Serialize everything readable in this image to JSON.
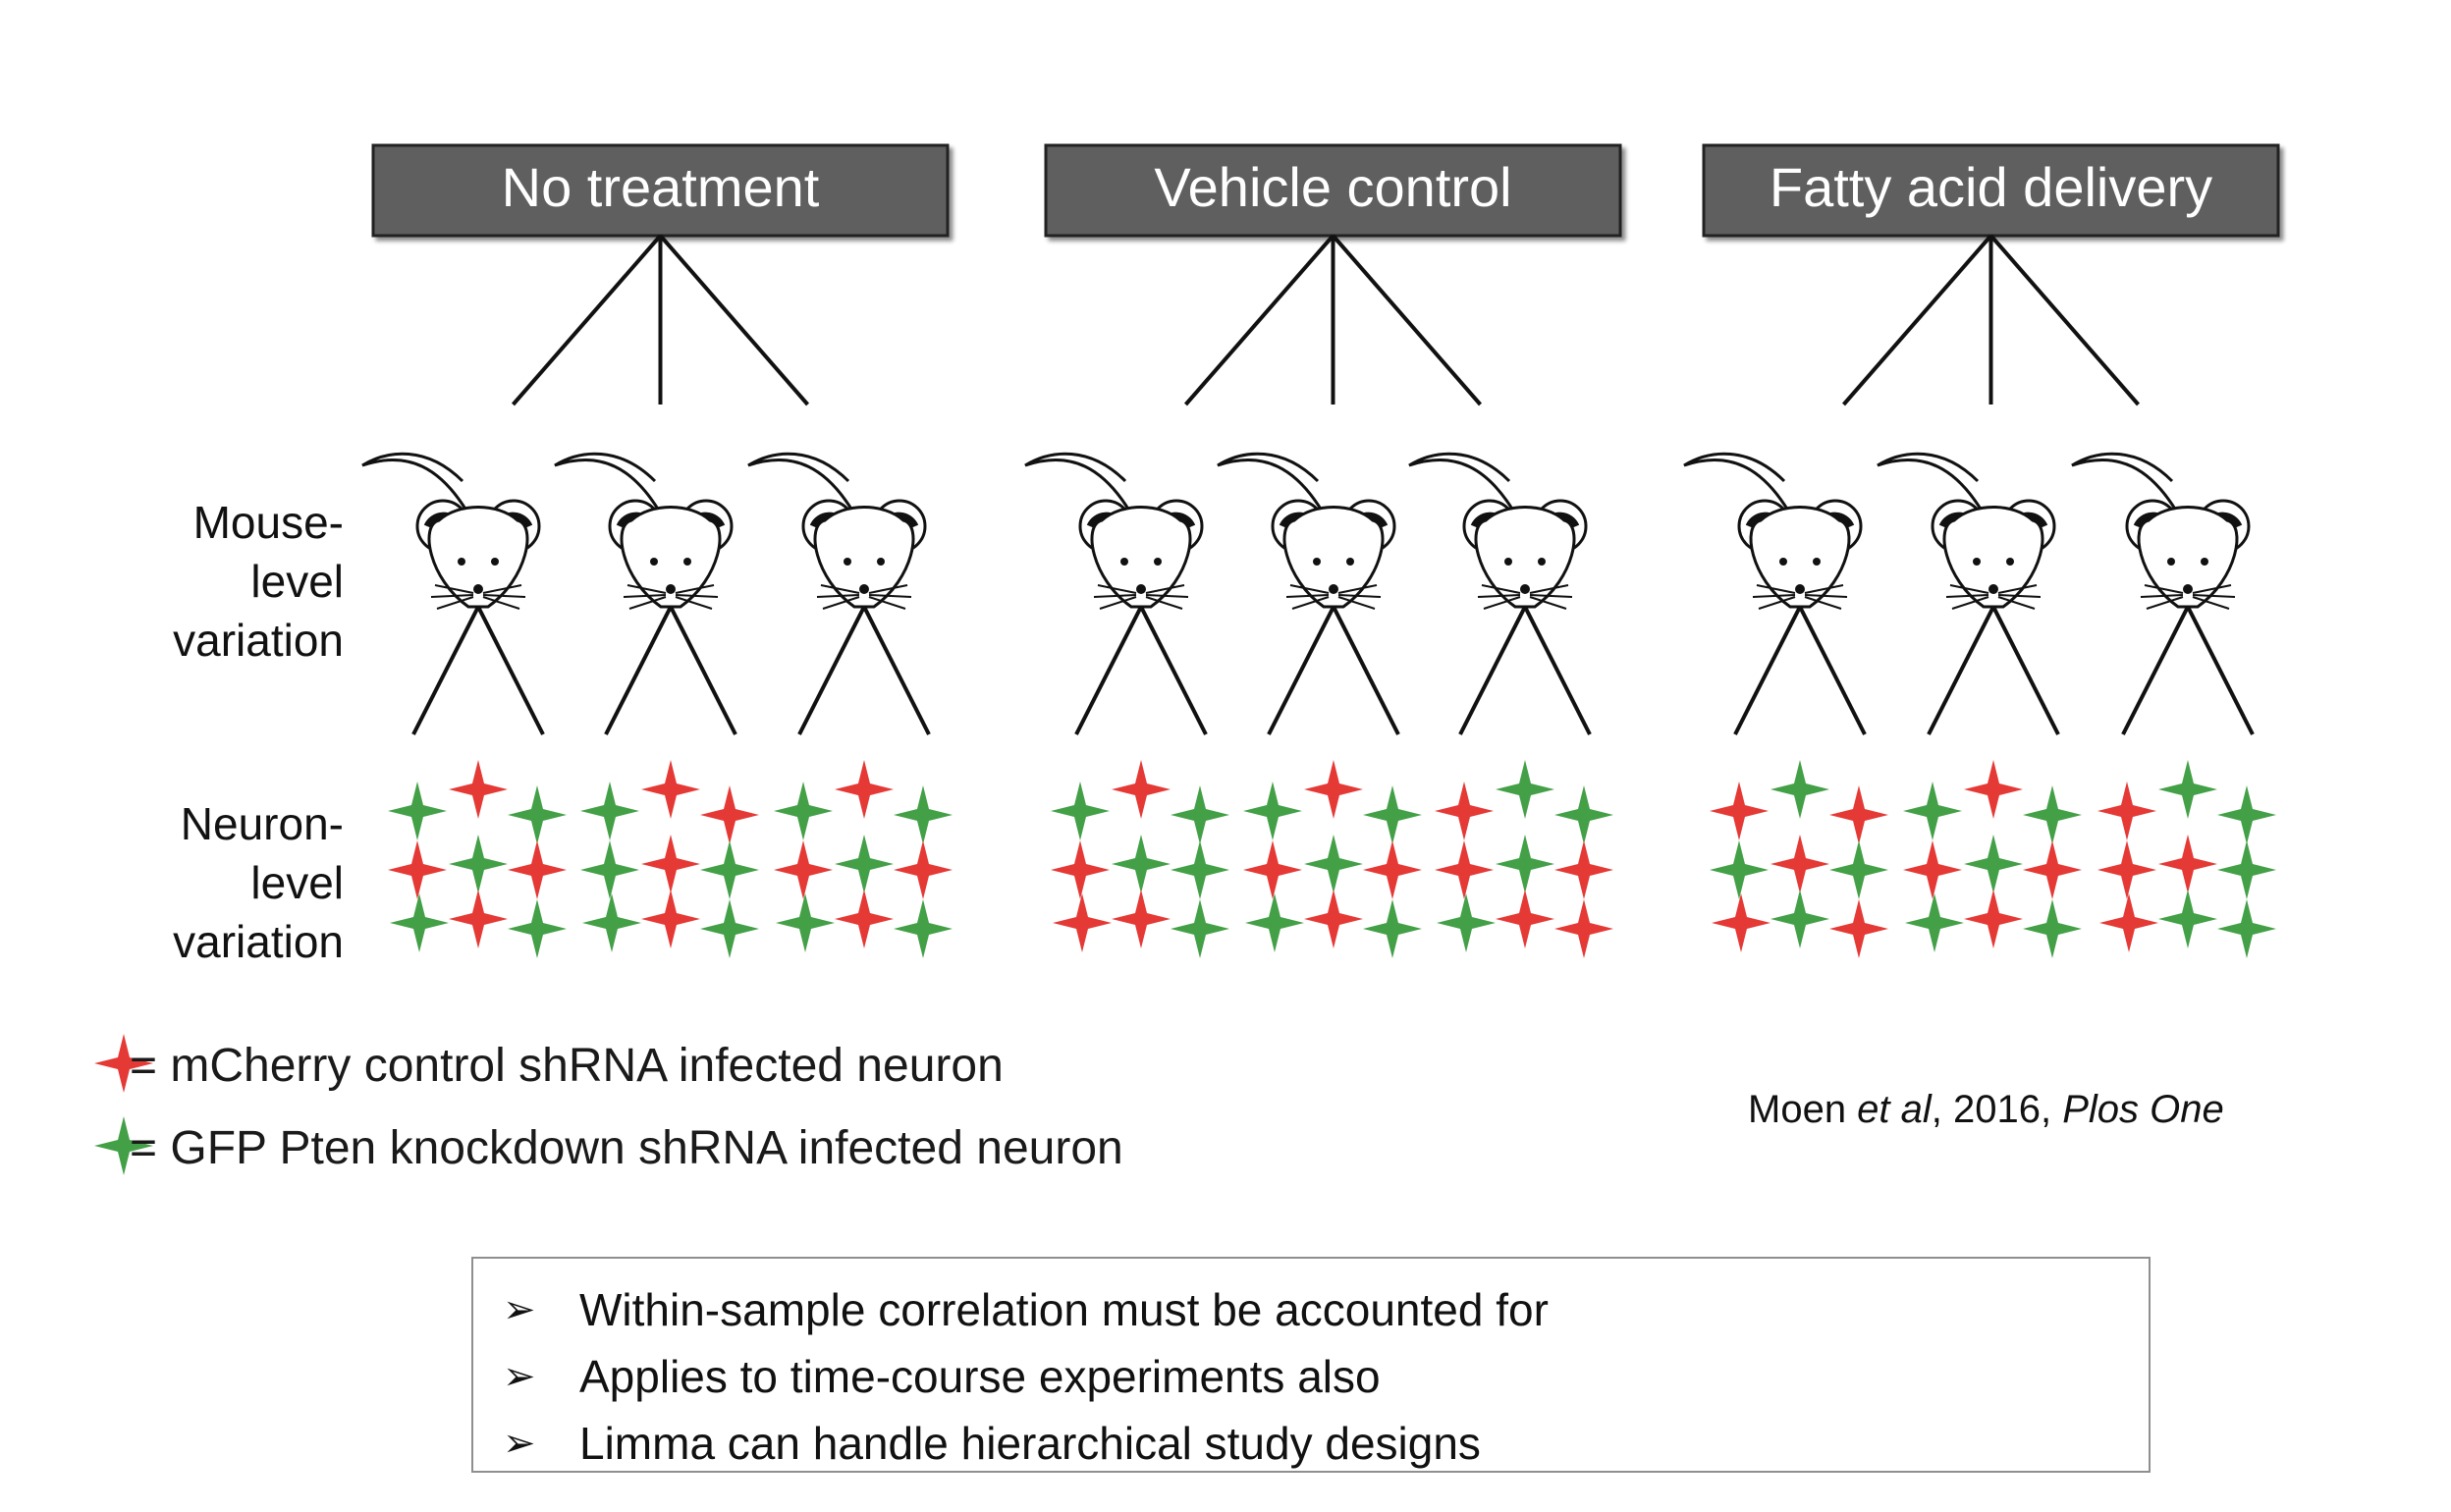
{
  "groups": [
    {
      "label": "No treatment"
    },
    {
      "label": "Vehicle control"
    },
    {
      "label": "Fatty acid delivery"
    }
  ],
  "row_labels": {
    "mouse": [
      "Mouse-",
      "level",
      "variation"
    ],
    "neuron": [
      "Neuron-",
      "level",
      "variation"
    ]
  },
  "legend": [
    {
      "color": "#e53935",
      "text": "= mCherry control shRNA infected neuron"
    },
    {
      "color": "#43a047",
      "text": "= GFP Pten knockdown shRNA infected neuron"
    }
  ],
  "colors": {
    "red": "#e53935",
    "green": "#43a047",
    "box": "#5f5f5f"
  },
  "citation": {
    "author": "Moen ",
    "etal": "et al",
    "year": ", 2016, ",
    "journal": "Plos One"
  },
  "bullets": [
    "Within-sample correlation must be accounted for",
    "Applies to time-course experiments also",
    "Limma can handle hierarchical study designs"
  ],
  "bullet_icon": "arrowhead-bullet-icon",
  "clusters": [
    "GRGRGRGRG",
    "GRRGRGGRG",
    "GRGRGRGRG",
    "GRGRGGRRG",
    "GRGRGRGRG",
    "RGGRGRGRR",
    "RGRGRGRGR",
    "GRGRGRGRG",
    "RGGRRGRGG"
  ]
}
